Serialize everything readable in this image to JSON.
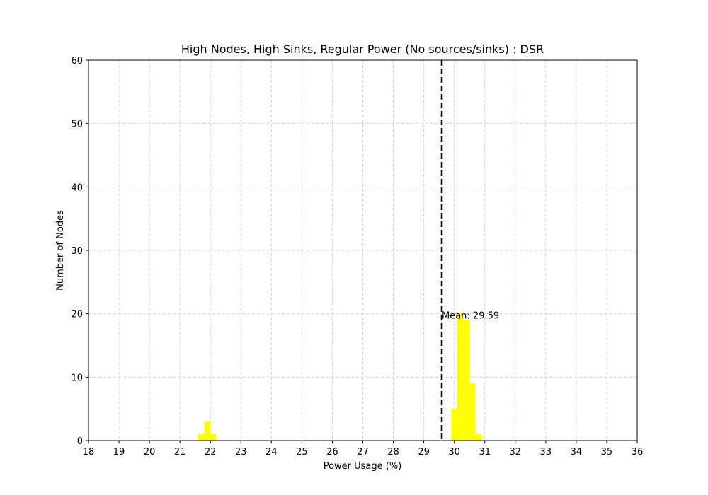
{
  "chart_data": {
    "type": "bar",
    "title": "High Nodes, High Sinks, Regular Power (No sources/sinks) : DSR",
    "xlabel": "Power Usage (%)",
    "ylabel": "Number of Nodes",
    "xlim": [
      18,
      36
    ],
    "ylim": [
      0,
      60
    ],
    "xticks": [
      18,
      19,
      20,
      21,
      22,
      23,
      24,
      25,
      26,
      27,
      28,
      29,
      30,
      31,
      32,
      33,
      34,
      35,
      36
    ],
    "yticks": [
      0,
      10,
      20,
      30,
      40,
      50,
      60
    ],
    "grid": true,
    "bar_color": "#ffff00",
    "bins": [
      {
        "x0": 21.6,
        "x1": 21.8,
        "count": 1
      },
      {
        "x0": 21.8,
        "x1": 22.0,
        "count": 3
      },
      {
        "x0": 22.0,
        "x1": 22.2,
        "count": 1
      },
      {
        "x0": 29.9,
        "x1": 30.1,
        "count": 5
      },
      {
        "x0": 30.1,
        "x1": 30.3,
        "count": 20
      },
      {
        "x0": 30.3,
        "x1": 30.5,
        "count": 19
      },
      {
        "x0": 30.5,
        "x1": 30.7,
        "count": 9
      },
      {
        "x0": 30.7,
        "x1": 30.9,
        "count": 1
      }
    ],
    "mean_line": {
      "value": 29.59,
      "style": "dashed",
      "color": "#000000"
    },
    "annotations": [
      {
        "text": "Mean: 29.59",
        "x": 29.59,
        "y": 19
      }
    ]
  }
}
